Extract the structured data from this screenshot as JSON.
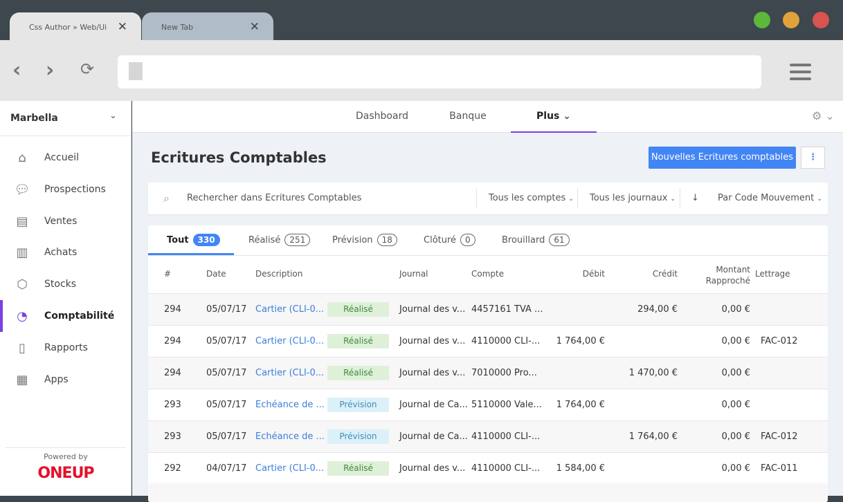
{
  "browser": {
    "tabs": [
      {
        "label": "Css Author » Web/Ui",
        "active": true
      },
      {
        "label": "New Tab",
        "active": false
      }
    ],
    "close_glyph": "✕",
    "window_colors": [
      "#5cb73a",
      "#e2a23b",
      "#d9534f"
    ]
  },
  "sidebar": {
    "org": "Marbella",
    "items": [
      {
        "label": "Accueil",
        "icon": "home-icon"
      },
      {
        "label": "Prospections",
        "icon": "chat-icon"
      },
      {
        "label": "Ventes",
        "icon": "chart-doc-icon"
      },
      {
        "label": "Achats",
        "icon": "receipt-icon"
      },
      {
        "label": "Stocks",
        "icon": "box-icon"
      },
      {
        "label": "Comptabilité",
        "icon": "pie-chart-icon",
        "active": true
      },
      {
        "label": "Rapports",
        "icon": "report-icon"
      },
      {
        "label": "Apps",
        "icon": "apps-icon"
      }
    ],
    "powered_by": "Powered by",
    "logo": "ONEUP"
  },
  "topnav": {
    "items": [
      "Dashboard",
      "Banque",
      "Plus"
    ],
    "active": "Plus"
  },
  "page": {
    "title": "Ecritures Comptables",
    "new_button": "Nouvelles Ecritures comptables",
    "accent": "#4285f4"
  },
  "filters": {
    "search_placeholder": "Rechercher dans Ecritures Comptables",
    "accounts": "Tous les comptes",
    "journals": "Tous les journaux",
    "sort_arrow": "↓",
    "sort": "Par Code Mouvement"
  },
  "tabs": [
    {
      "label": "Tout",
      "count": "330"
    },
    {
      "label": "Réalisé",
      "count": "251"
    },
    {
      "label": "Prévision",
      "count": "18"
    },
    {
      "label": "Clôturé",
      "count": "0"
    },
    {
      "label": "Brouillard",
      "count": "61"
    }
  ],
  "table": {
    "headers": [
      "#",
      "Date",
      "Description",
      "Journal",
      "Compte",
      "Débit",
      "Crédit",
      "Montant Rapproché",
      "Lettrage"
    ],
    "rows": [
      {
        "num": "294",
        "date": "05/07/17",
        "desc": "Cartier (CLI-0...",
        "status": "Réalisé",
        "journal": "Journal des v...",
        "compte": "4457161 TVA ...",
        "debit": "",
        "credit": "294,00 €",
        "montant": "0,00 €",
        "lettrage": ""
      },
      {
        "num": "294",
        "date": "05/07/17",
        "desc": "Cartier (CLI-0...",
        "status": "Réalisé",
        "journal": "Journal des v...",
        "compte": "4110000 CLI-...",
        "debit": "1 764,00 €",
        "credit": "",
        "montant": "0,00 €",
        "lettrage": "FAC-012"
      },
      {
        "num": "294",
        "date": "05/07/17",
        "desc": "Cartier (CLI-0...",
        "status": "Réalisé",
        "journal": "Journal des v...",
        "compte": "7010000 Pro...",
        "debit": "",
        "credit": "1 470,00 €",
        "montant": "0,00 €",
        "lettrage": ""
      },
      {
        "num": "293",
        "date": "05/07/17",
        "desc": "Echéance de ...",
        "status": "Prévision",
        "journal": "Journal de Ca...",
        "compte": "5110000 Vale...",
        "debit": "1 764,00 €",
        "credit": "",
        "montant": "0,00 €",
        "lettrage": ""
      },
      {
        "num": "293",
        "date": "05/07/17",
        "desc": "Echéance de ...",
        "status": "Prévision",
        "journal": "Journal de Ca...",
        "compte": "4110000 CLI-...",
        "debit": "",
        "credit": "1 764,00 €",
        "montant": "0,00 €",
        "lettrage": "FAC-012"
      },
      {
        "num": "292",
        "date": "04/07/17",
        "desc": "Cartier (CLI-0...",
        "status": "Réalisé",
        "journal": "Journal des v...",
        "compte": "4110000 CLI-...",
        "debit": "1 584,00 €",
        "credit": "",
        "montant": "0,00 €",
        "lettrage": "FAC-011"
      }
    ]
  }
}
